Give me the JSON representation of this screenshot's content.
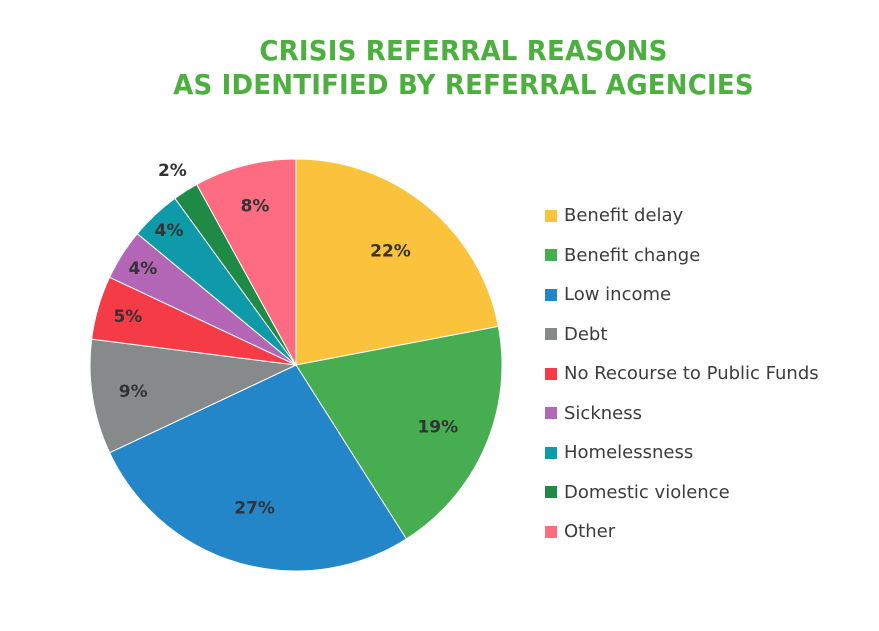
{
  "title": {
    "line1": "CRISIS REFERRAL REASONS",
    "line2": "AS IDENTIFIED BY REFERRAL AGENCIES"
  },
  "chart_data": {
    "type": "pie",
    "title": "CRISIS REFERRAL REASONS AS IDENTIFIED BY REFERRAL AGENCIES",
    "legend_position": "right",
    "slices": [
      {
        "label": "Benefit delay",
        "value": 22,
        "display": "22%",
        "color": "#fbc23c"
      },
      {
        "label": "Benefit change",
        "value": 19,
        "display": "19%",
        "color": "#47ad51"
      },
      {
        "label": "Low income",
        "value": 27,
        "display": "27%",
        "color": "#2386c8"
      },
      {
        "label": "Debt",
        "value": 9,
        "display": "9%",
        "color": "#868a8b"
      },
      {
        "label": "No Recourse to Public Funds",
        "value": 5,
        "display": "5%",
        "color": "#f53b45"
      },
      {
        "label": "Sickness",
        "value": 4,
        "display": "4%",
        "color": "#b366b6"
      },
      {
        "label": "Homelessness",
        "value": 4,
        "display": "4%",
        "color": "#0e9aa9"
      },
      {
        "label": "Domestic violence",
        "value": 2,
        "display": "2%",
        "color": "#1f8a45"
      },
      {
        "label": "Other",
        "value": 8,
        "display": "8%",
        "color": "#fd6c81"
      }
    ]
  }
}
